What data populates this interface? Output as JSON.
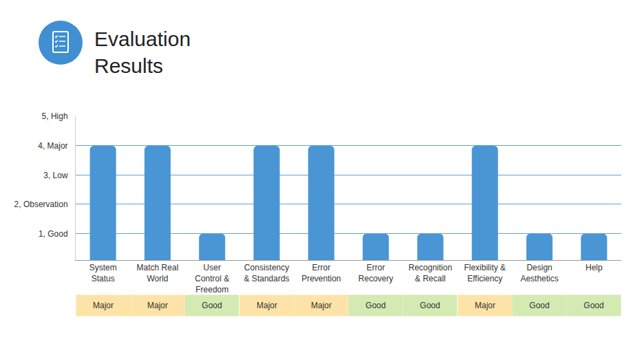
{
  "chart_data": {
    "type": "bar",
    "title": "Evaluation Results",
    "categories": [
      "System Status",
      "Match Real World",
      "User Control & Freedom",
      "Consistency & Standards",
      "Error Prevention",
      "Error Recovery",
      "Recognition & Recall",
      "Flexibility & Efficiency",
      "Design Aesthetics",
      "Help"
    ],
    "values": [
      4,
      4,
      1,
      4,
      4,
      1,
      1,
      4,
      1,
      1
    ],
    "color": "#4a96d5",
    "ylim": [
      0.1,
      5
    ],
    "yticks": [
      {
        "value": 1,
        "label": "1, Good"
      },
      {
        "value": 2,
        "label": "2, Observation"
      },
      {
        "value": 3,
        "label": "3, Low"
      },
      {
        "value": 4,
        "label": "4, Major"
      },
      {
        "value": 5,
        "label": "5, High"
      }
    ],
    "grid": true,
    "annotations": [
      {
        "category": "System Status",
        "text": "Major",
        "color": "#fde3a7"
      },
      {
        "category": "Match Real World",
        "text": "Major",
        "color": "#fde3a7"
      },
      {
        "category": "User Control & Freedom",
        "text": "Good",
        "color": "#d4eab3"
      },
      {
        "category": "Consistency & Standards",
        "text": "Major",
        "color": "#fde3a7"
      },
      {
        "category": "Error Prevention",
        "text": "Major",
        "color": "#fde3a7"
      },
      {
        "category": "Error Recovery",
        "text": "Good",
        "color": "#d4eab3"
      },
      {
        "category": "Recognition & Recall",
        "text": "Good",
        "color": "#d4eab3"
      },
      {
        "category": "Flexibility & Efficiency",
        "text": "Major",
        "color": "#fde3a7"
      },
      {
        "category": "Design Aesthetics",
        "text": "Good",
        "color": "#d4eab3"
      },
      {
        "category": "Help",
        "text": "Good",
        "color": "#d4eab3"
      }
    ]
  }
}
